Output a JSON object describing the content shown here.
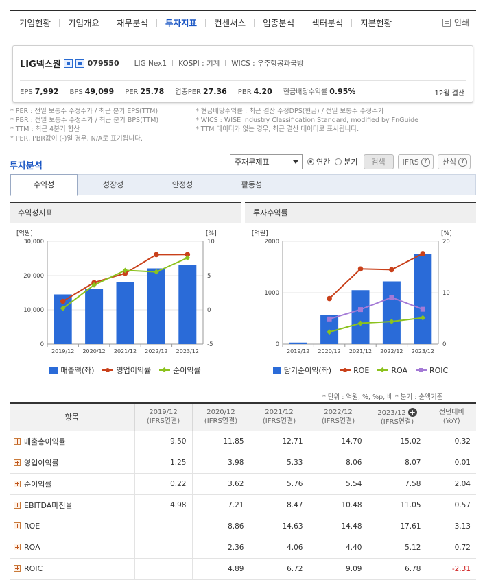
{
  "nav": {
    "tabs": [
      "기업현황",
      "기업개요",
      "재무분석",
      "투자지표",
      "컨센서스",
      "업종분석",
      "섹터분석",
      "지분현황"
    ],
    "active_index": 3,
    "print_label": "인쇄"
  },
  "company": {
    "name": "LIG넥스원",
    "code": "079550",
    "eng_name": "LIG Nex1",
    "market": "KOSPI : 기계",
    "wics": "WICS : 우주항공과국방",
    "metrics": [
      {
        "label": "EPS",
        "value": "7,992"
      },
      {
        "label": "BPS",
        "value": "49,099"
      },
      {
        "label": "PER",
        "value": "25.78"
      },
      {
        "label": "업종PER",
        "value": "27.36"
      },
      {
        "label": "PBR",
        "value": "4.20"
      },
      {
        "label": "현금배당수익률",
        "value": "0.95%"
      }
    ],
    "settlement": "12월 결산"
  },
  "notes": {
    "left": [
      "* PER : 전일 보통주 수정주가 / 최근 분기 EPS(TTM)",
      "* PBR : 전일 보통주 수정주가 / 최근 분기 BPS(TTM)",
      "* TTM : 최근 4분기 합산",
      "* PER, PBR값이 (-)일 경우, N/A로 표기됩니다."
    ],
    "right": [
      "* 현금배당수익률 : 최근 결산 수정DPS(현금) / 전일 보통주 수정주가",
      "* WICS : WISE Industry Classification Standard, modified by FnGuide",
      "* TTM 데이터가 없는 경우, 최근 결산 데이터로 표시됩니다."
    ]
  },
  "section": {
    "title": "투자분석",
    "select_value": "주재무제표",
    "radio_annual": "연간",
    "radio_quarter": "분기",
    "search_label": "검색",
    "ifrs_label": "IFRS",
    "formula_label": "산식"
  },
  "subtabs": [
    "수익성",
    "성장성",
    "안정성",
    "활동성"
  ],
  "panels": {
    "left_title": "수익성지표",
    "right_title": "투자수익률",
    "left_unit_left": "[억원]",
    "left_unit_right": "[%]",
    "right_unit_left": "[억원]",
    "right_unit_right": "[%]"
  },
  "chart_data": [
    {
      "type": "bar",
      "title": "수익성지표",
      "categories": [
        "2019/12",
        "2020/12",
        "2021/12",
        "2022/12",
        "2023/12"
      ],
      "ylim": [
        0,
        30000
      ],
      "yticks": [
        "0",
        "10,000",
        "20,000",
        "30,000"
      ],
      "y2lim": [
        -5,
        10
      ],
      "y2ticks": [
        "-5",
        "0",
        "5",
        "10"
      ],
      "bar_series": {
        "name": "매출액(좌)",
        "values": [
          14500,
          16000,
          18200,
          22100,
          23100
        ],
        "color": "#2a6bd8"
      },
      "line_series": [
        {
          "name": "영업이익률",
          "values": [
            1.25,
            3.98,
            5.33,
            8.06,
            8.07
          ],
          "color": "#c9401a",
          "marker": "circle"
        },
        {
          "name": "순이익률",
          "values": [
            0.22,
            3.62,
            5.76,
            5.54,
            7.58
          ],
          "color": "#8cc21e",
          "marker": "diamond"
        }
      ],
      "legend": "bottom"
    },
    {
      "type": "bar",
      "title": "투자수익률",
      "categories": [
        "2019/12",
        "2020/12",
        "2021/12",
        "2022/12",
        "2023/12"
      ],
      "ylim": [
        0,
        2000
      ],
      "yticks": [
        "0",
        "1000",
        "2000"
      ],
      "y2lim": [
        0,
        20
      ],
      "y2ticks": [
        "0",
        "10",
        "20"
      ],
      "bar_series": {
        "name": "당기순이익(좌)",
        "values": [
          30,
          560,
          1050,
          1220,
          1750
        ],
        "color": "#2a6bd8"
      },
      "line_series": [
        {
          "name": "ROE",
          "values": [
            null,
            8.86,
            14.63,
            14.48,
            17.61
          ],
          "color": "#c9401a",
          "marker": "circle"
        },
        {
          "name": "ROA",
          "values": [
            null,
            2.36,
            4.06,
            4.4,
            5.12
          ],
          "color": "#8cc21e",
          "marker": "diamond"
        },
        {
          "name": "ROIC",
          "values": [
            null,
            4.89,
            6.72,
            9.09,
            6.78
          ],
          "color": "#a47ad6",
          "marker": "square"
        }
      ],
      "legend": "bottom"
    }
  ],
  "unit_note": "* 단위 : 억원, %, %p, 배     * 분기 : 순액기준",
  "table": {
    "header_item": "항목",
    "columns": [
      {
        "year": "2019/12",
        "basis": "(IFRS연결)"
      },
      {
        "year": "2020/12",
        "basis": "(IFRS연결)"
      },
      {
        "year": "2021/12",
        "basis": "(IFRS연결)"
      },
      {
        "year": "2022/12",
        "basis": "(IFRS연결)"
      },
      {
        "year": "2023/12",
        "basis": "(IFRS연결)"
      }
    ],
    "yoy_header": "전년대비",
    "yoy_sub": "(YoY)",
    "rows": [
      {
        "label": "매출총이익률",
        "values": [
          "9.50",
          "11.85",
          "12.71",
          "14.70",
          "15.02"
        ],
        "yoy": "0.32"
      },
      {
        "label": "영업이익률",
        "values": [
          "1.25",
          "3.98",
          "5.33",
          "8.06",
          "8.07"
        ],
        "yoy": "0.01"
      },
      {
        "label": "순이익률",
        "values": [
          "0.22",
          "3.62",
          "5.76",
          "5.54",
          "7.58"
        ],
        "yoy": "2.04"
      },
      {
        "label": "EBITDA마진율",
        "values": [
          "4.98",
          "7.21",
          "8.47",
          "10.48",
          "11.05"
        ],
        "yoy": "0.57"
      },
      {
        "label": "ROE",
        "values": [
          "",
          "8.86",
          "14.63",
          "14.48",
          "17.61"
        ],
        "yoy": "3.13"
      },
      {
        "label": "ROA",
        "values": [
          "",
          "2.36",
          "4.06",
          "4.40",
          "5.12"
        ],
        "yoy": "0.72"
      },
      {
        "label": "ROIC",
        "values": [
          "",
          "4.89",
          "6.72",
          "9.09",
          "6.78"
        ],
        "yoy": "-2.31"
      }
    ]
  }
}
